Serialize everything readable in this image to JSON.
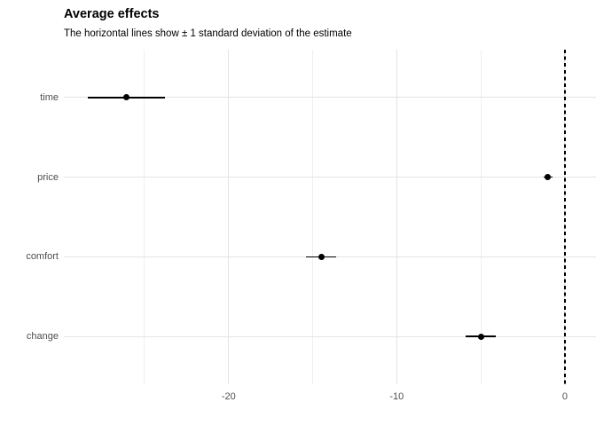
{
  "chart_data": {
    "type": "scatter",
    "subtype": "dot-and-whisker, horizontal error bars",
    "title": "Average effects",
    "subtitle": "The horizontal lines show ± 1 standard deviation of the estimate",
    "xlabel": "",
    "ylabel": "",
    "categories": [
      "time",
      "price",
      "comfort",
      "change"
    ],
    "points": [
      {
        "category": "time",
        "estimate": -26.1,
        "sd": 2.3,
        "low": -28.4,
        "high": -23.8
      },
      {
        "category": "price",
        "estimate": -1.0,
        "sd": 0.25,
        "low": -1.25,
        "high": -0.75
      },
      {
        "category": "comfort",
        "estimate": -14.5,
        "sd": 0.9,
        "low": -15.4,
        "high": -13.6
      },
      {
        "category": "change",
        "estimate": -5.0,
        "sd": 0.9,
        "low": -5.9,
        "high": -4.1
      }
    ],
    "x_ticks": [
      -20,
      -10,
      0
    ],
    "x_tick_labels": [
      "-20",
      "-10",
      "0"
    ],
    "x_minor_ticks": [
      -25,
      -15,
      -5
    ],
    "xlim": [
      -29.8,
      1.85
    ],
    "reference_line": {
      "x": 0,
      "style": "dashed",
      "color": "#000000"
    },
    "grid": "on",
    "legend": "none",
    "colors": {
      "point": "#000000",
      "errorbar": "#000000",
      "grid_major": "#e3e3e3",
      "grid_minor": "#efefef",
      "axis_text": "#4d4d4d",
      "title_text": "#000000",
      "background": "#ffffff"
    }
  }
}
